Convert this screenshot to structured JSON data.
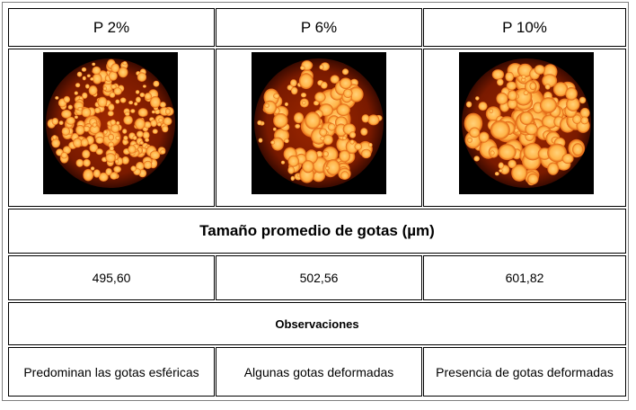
{
  "headers": [
    "P 2%",
    "P 6%",
    "P 10%"
  ],
  "images": [
    {
      "name": "micrograph-p2",
      "description_icon": "droplet-micrograph"
    },
    {
      "name": "micrograph-p6",
      "description_icon": "droplet-micrograph"
    },
    {
      "name": "micrograph-p10",
      "description_icon": "droplet-micrograph"
    }
  ],
  "size_title": "Tamaño promedio de gotas (µm)",
  "sizes": [
    "495,60",
    "502,56",
    "601,82"
  ],
  "observations_title": "Observaciones",
  "observations": [
    "Predominan las gotas esféricas",
    "Algunas gotas deformadas",
    "Presencia de gotas deformadas"
  ],
  "colors": {
    "background": "#000000",
    "droplet_core": "#ffd27a",
    "droplet_edge": "#e06010",
    "matrix": "#7a1a00"
  }
}
